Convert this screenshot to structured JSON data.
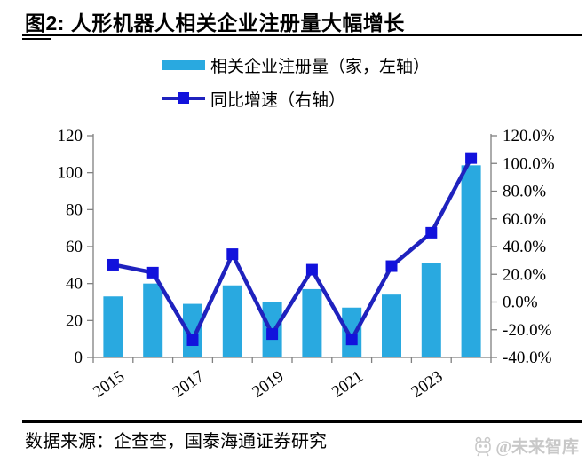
{
  "title": "图2:  人形机器人相关企业注册量大幅增长",
  "legend": {
    "bar_label": "相关企业注册量（家，左轴）",
    "line_label": "同比增速（右轴）"
  },
  "footer": {
    "source": "数据来源：企查查，国泰海通证券研究"
  },
  "watermark": {
    "text": "@未来智库",
    "icon": "mascot-logo-icon"
  },
  "colors": {
    "bar": "#29A9E0",
    "line": "#1F22BE",
    "marker": "#1212DC",
    "axis": "#808080",
    "tick_text": "#000000",
    "watermark": "#c8c8c8"
  },
  "chart_data": {
    "type": "bar",
    "subtype": "bar+line dual axis",
    "categories": [
      "2015",
      "2016",
      "2017",
      "2018",
      "2019",
      "2020",
      "2021",
      "2022",
      "2023",
      "2024"
    ],
    "series": [
      {
        "name": "相关企业注册量（家，左轴）",
        "type": "bar",
        "axis": "left",
        "values": [
          33,
          40,
          29,
          39,
          30,
          37,
          27,
          34,
          51,
          104
        ]
      },
      {
        "name": "同比增速（右轴）",
        "type": "line",
        "axis": "right",
        "values": [
          26.9,
          21.2,
          -27.5,
          34.5,
          -23.1,
          23.3,
          -27.0,
          25.9,
          50.0,
          103.9
        ]
      }
    ],
    "left_axis": {
      "range": [
        0,
        120
      ],
      "ticks": [
        0,
        20,
        40,
        60,
        80,
        100,
        120
      ]
    },
    "right_axis": {
      "range": [
        -40,
        120
      ],
      "tick_labels": [
        "-40.0%",
        "-20.0%",
        "0.0%",
        "20.0%",
        "40.0%",
        "60.0%",
        "80.0%",
        "100.0%",
        "120.0%"
      ]
    },
    "x_tick_labels": [
      "2015",
      "2017",
      "2019",
      "2021",
      "2023"
    ],
    "grid": false,
    "legend_position": "top-center"
  }
}
